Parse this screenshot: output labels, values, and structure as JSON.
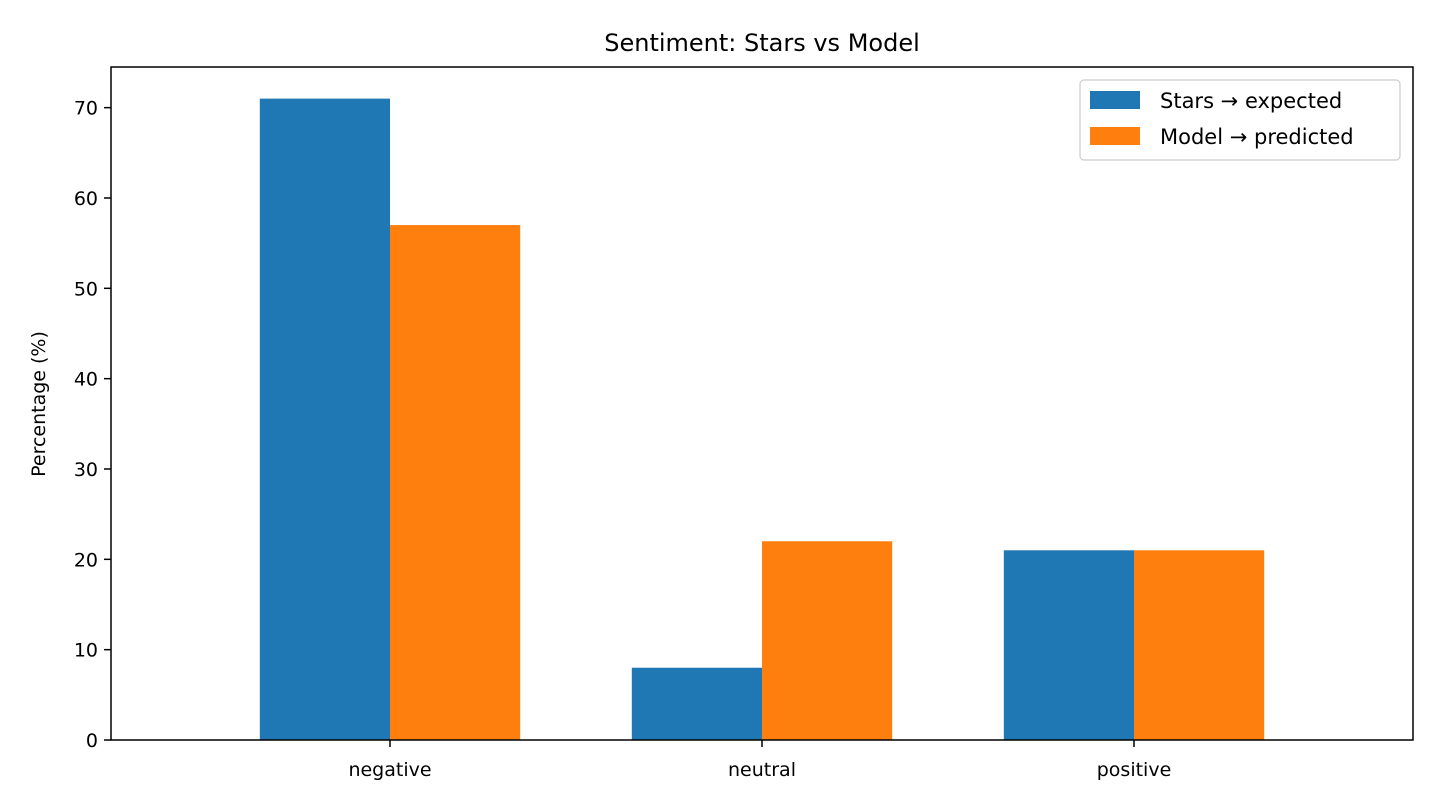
{
  "chart_data": {
    "type": "bar",
    "title": "Sentiment: Stars vs Model",
    "xlabel": "",
    "ylabel": "Percentage (%)",
    "categories": [
      "negative",
      "neutral",
      "positive"
    ],
    "series": [
      {
        "name": "Stars → expected",
        "values": [
          71,
          8,
          21
        ],
        "color": "#1f77b4"
      },
      {
        "name": "Model → predicted",
        "values": [
          57,
          22,
          21
        ],
        "color": "#ff7f0e"
      }
    ],
    "ylim": [
      0,
      74.5
    ],
    "yticks": [
      0,
      10,
      20,
      30,
      40,
      50,
      60,
      70
    ],
    "grid": false,
    "legend_position": "top-right"
  }
}
